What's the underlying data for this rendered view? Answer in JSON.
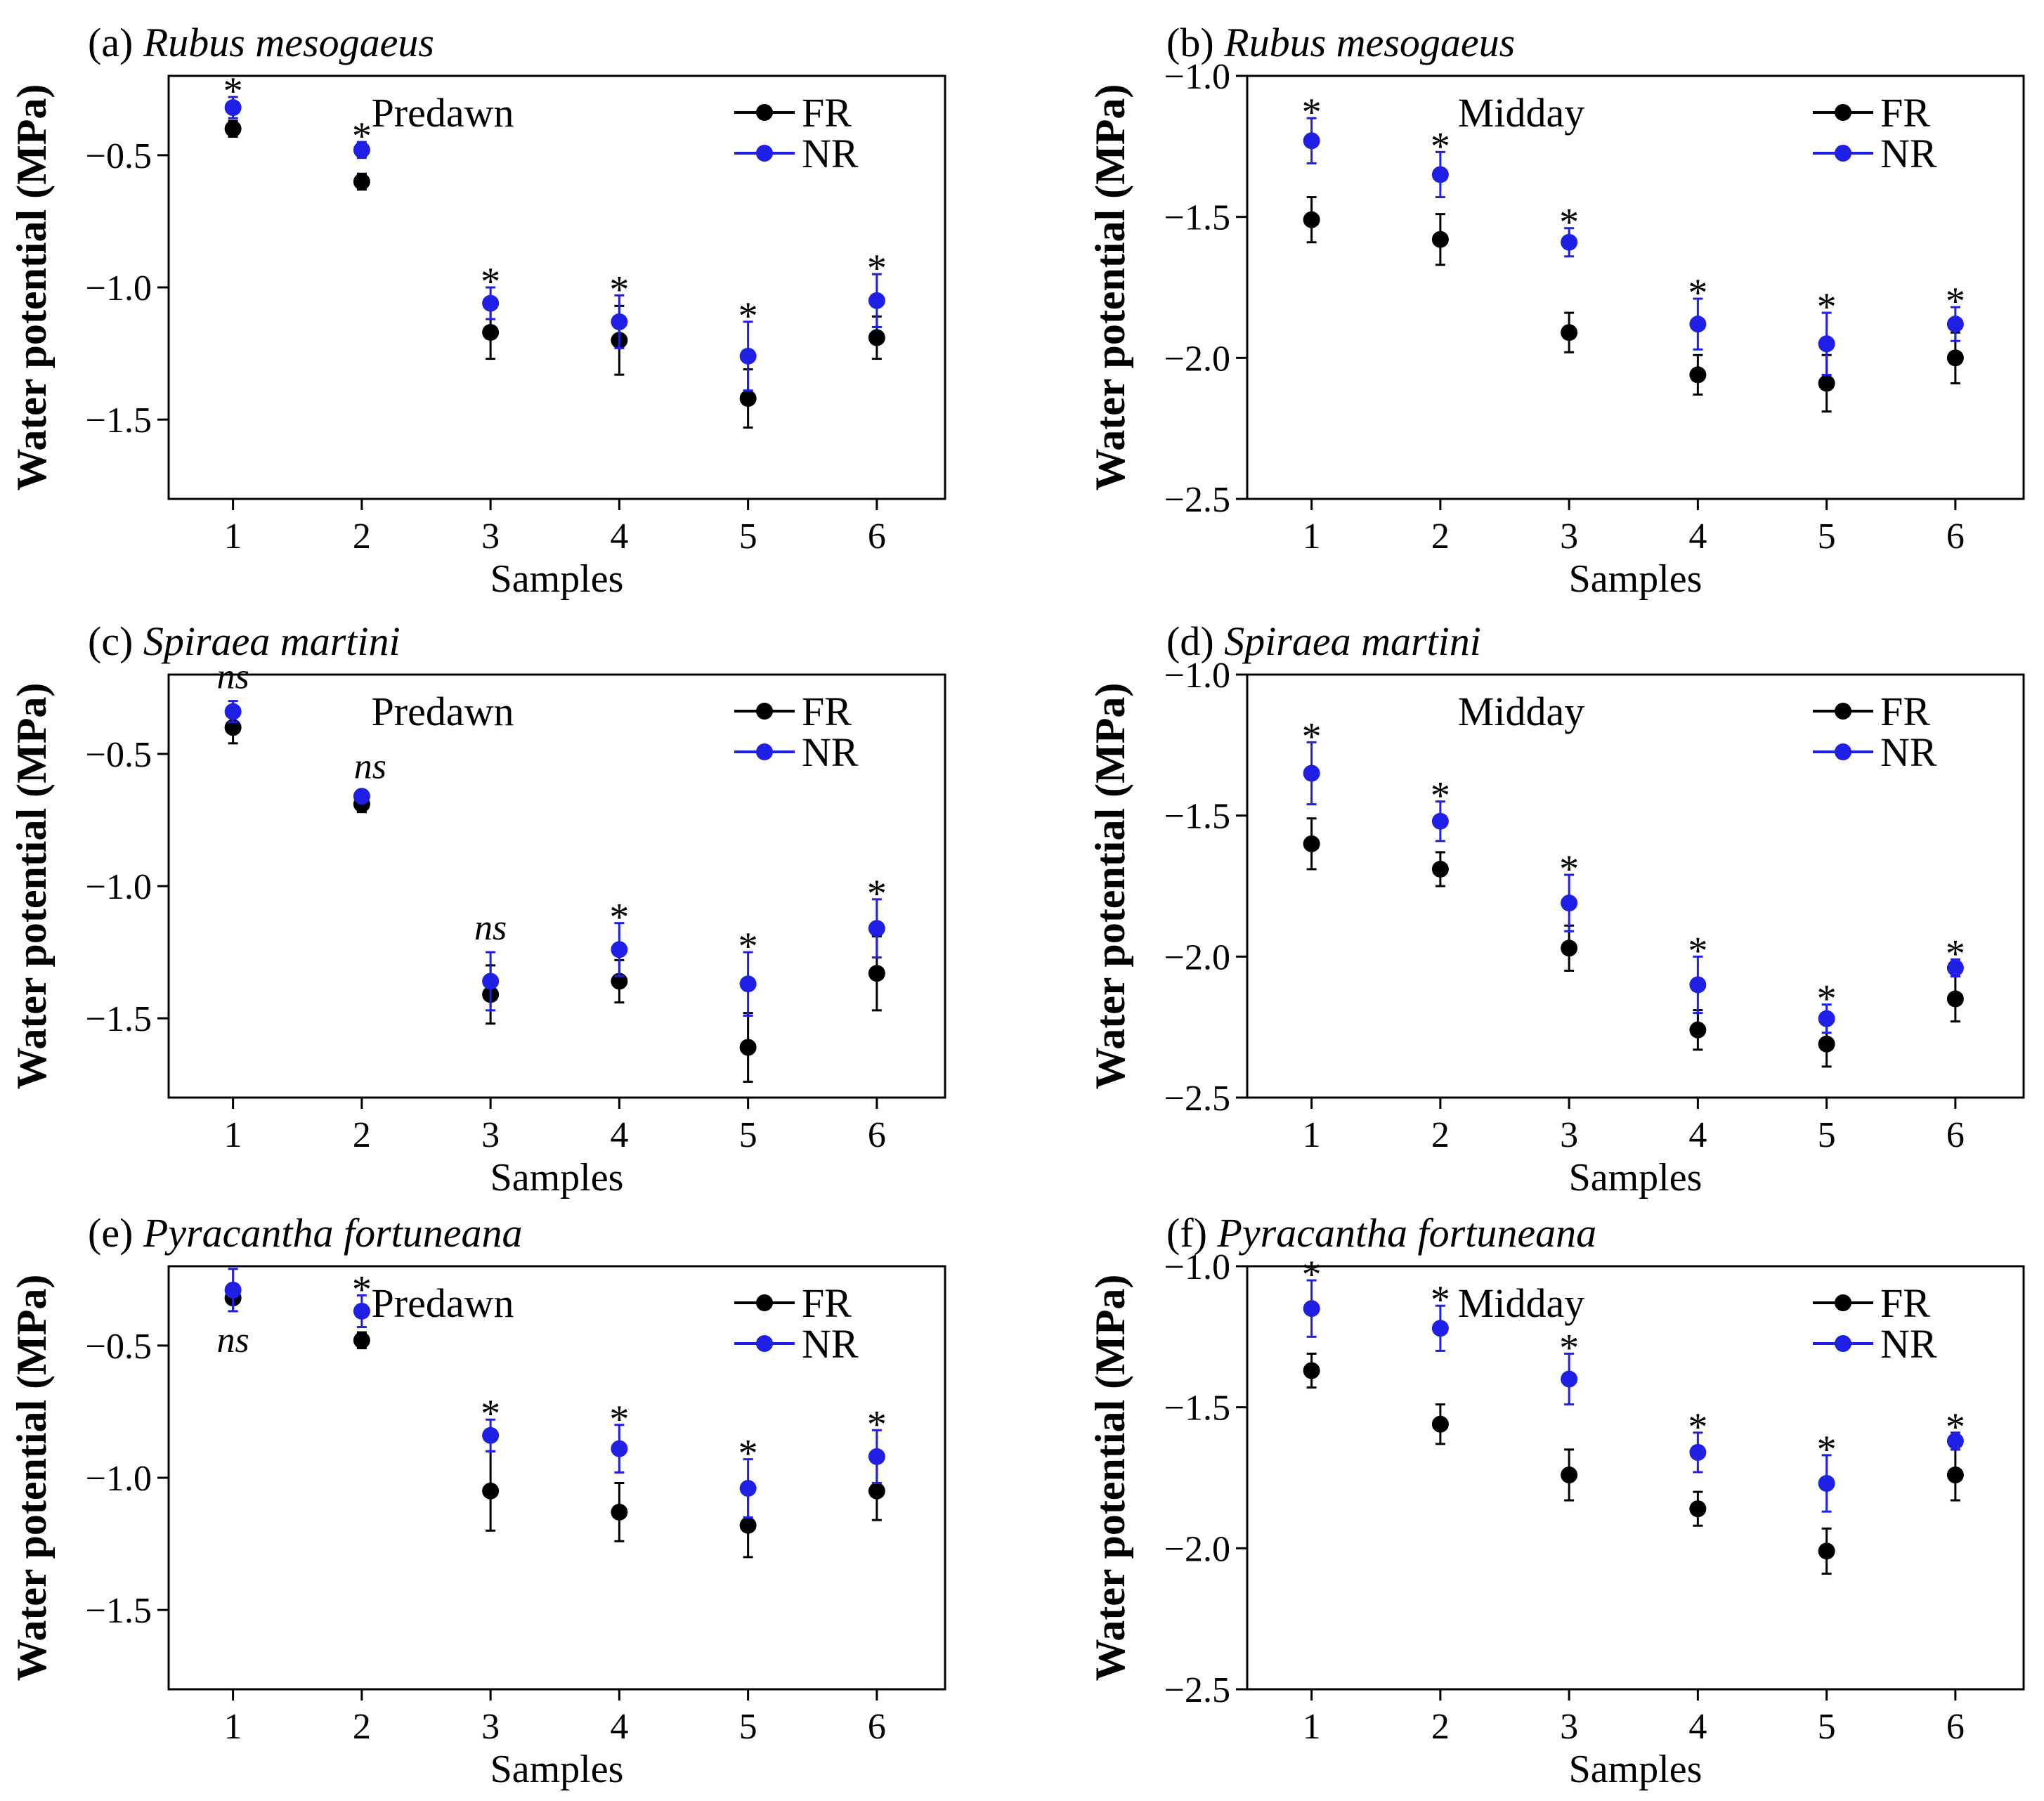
{
  "figure": {
    "background": "#ffffff"
  },
  "series_colors": {
    "FR": "#000000",
    "NR": "#1f1fe6"
  },
  "chart_data": [
    {
      "id": "a",
      "type": "scatter",
      "title_prefix": "(a) ",
      "title": "Rubus mesogaeus",
      "period": "Predawn",
      "xlabel": "Samples",
      "ylabel": "Water potential (MPa)",
      "categories": [
        "1",
        "2",
        "3",
        "4",
        "5",
        "6"
      ],
      "ylim": [
        -1.8,
        -0.2
      ],
      "yticks": [
        -0.5,
        -1.0,
        -1.5
      ],
      "ytick_labels": [
        "−0.5",
        "−1.0",
        "−1.5"
      ],
      "legend": [
        "FR",
        "NR"
      ],
      "series": [
        {
          "name": "FR",
          "color": "#000000",
          "values": [
            -0.4,
            -0.6,
            -1.17,
            -1.2,
            -1.42,
            -1.19
          ],
          "errors": [
            0.03,
            0.03,
            0.1,
            0.13,
            0.11,
            0.08
          ]
        },
        {
          "name": "NR",
          "color": "#1f1fe6",
          "values": [
            -0.32,
            -0.48,
            -1.06,
            -1.13,
            -1.26,
            -1.05
          ],
          "errors": [
            0.04,
            0.03,
            0.06,
            0.1,
            0.13,
            0.1
          ]
        }
      ],
      "significance": [
        "*",
        "*",
        "*",
        "*",
        "*",
        "*"
      ],
      "significance_position": [
        "above",
        "above",
        "above",
        "above",
        "above",
        "above"
      ]
    },
    {
      "id": "b",
      "type": "scatter",
      "title_prefix": "(b) ",
      "title": "Rubus mesogaeus",
      "period": "Midday",
      "xlabel": "Samples",
      "ylabel": "Water potential (MPa)",
      "categories": [
        "1",
        "2",
        "3",
        "4",
        "5",
        "6"
      ],
      "ylim": [
        -2.5,
        -1.0
      ],
      "yticks": [
        -1.0,
        -1.5,
        -2.0,
        -2.5
      ],
      "ytick_labels": [
        "−1.0",
        "−1.5",
        "−2.0",
        "−2.5"
      ],
      "legend": [
        "FR",
        "NR"
      ],
      "series": [
        {
          "name": "FR",
          "color": "#000000",
          "values": [
            -1.51,
            -1.58,
            -1.91,
            -2.06,
            -2.09,
            -2.0
          ],
          "errors": [
            0.08,
            0.09,
            0.07,
            0.07,
            0.1,
            0.09
          ]
        },
        {
          "name": "NR",
          "color": "#1f1fe6",
          "values": [
            -1.23,
            -1.35,
            -1.59,
            -1.88,
            -1.95,
            -1.88
          ],
          "errors": [
            0.08,
            0.08,
            0.05,
            0.09,
            0.11,
            0.06
          ]
        }
      ],
      "significance": [
        "*",
        "*",
        "*",
        "*",
        "*",
        "*"
      ],
      "significance_position": [
        "above",
        "above",
        "above",
        "above",
        "above",
        "above"
      ]
    },
    {
      "id": "c",
      "type": "scatter",
      "title_prefix": "(c) ",
      "title": "Spiraea martini",
      "period": "Predawn",
      "xlabel": "Samples",
      "ylabel": "Water potential (MPa)",
      "categories": [
        "1",
        "2",
        "3",
        "4",
        "5",
        "6"
      ],
      "ylim": [
        -1.8,
        -0.2
      ],
      "yticks": [
        -0.5,
        -1.0,
        -1.5
      ],
      "ytick_labels": [
        "−0.5",
        "−1.0",
        "−1.5"
      ],
      "legend": [
        "FR",
        "NR"
      ],
      "series": [
        {
          "name": "FR",
          "color": "#000000",
          "values": [
            -0.4,
            -0.69,
            -1.41,
            -1.36,
            -1.61,
            -1.33
          ],
          "errors": [
            0.06,
            0.03,
            0.11,
            0.08,
            0.13,
            0.14
          ]
        },
        {
          "name": "NR",
          "color": "#1f1fe6",
          "values": [
            -0.34,
            -0.66,
            -1.36,
            -1.24,
            -1.37,
            -1.16
          ],
          "errors": [
            0.04,
            0.02,
            0.11,
            0.1,
            0.12,
            0.11
          ]
        }
      ],
      "significance": [
        "ns",
        "ns",
        "ns",
        "*",
        "*",
        "*"
      ],
      "significance_position": [
        "above",
        "above",
        "above",
        "above",
        "above",
        "above"
      ]
    },
    {
      "id": "d",
      "type": "scatter",
      "title_prefix": "(d) ",
      "title": "Spiraea martini",
      "period": "Midday",
      "xlabel": "Samples",
      "ylabel": "Water potential (MPa)",
      "categories": [
        "1",
        "2",
        "3",
        "4",
        "5",
        "6"
      ],
      "ylim": [
        -2.5,
        -1.0
      ],
      "yticks": [
        -1.0,
        -1.5,
        -2.0,
        -2.5
      ],
      "ytick_labels": [
        "−1.0",
        "−1.5",
        "−2.0",
        "−2.5"
      ],
      "legend": [
        "FR",
        "NR"
      ],
      "series": [
        {
          "name": "FR",
          "color": "#000000",
          "values": [
            -1.6,
            -1.69,
            -1.97,
            -2.26,
            -2.31,
            -2.15
          ],
          "errors": [
            0.09,
            0.06,
            0.08,
            0.07,
            0.08,
            0.08
          ]
        },
        {
          "name": "NR",
          "color": "#1f1fe6",
          "values": [
            -1.35,
            -1.52,
            -1.81,
            -2.1,
            -2.22,
            -2.04
          ],
          "errors": [
            0.11,
            0.07,
            0.1,
            0.1,
            0.05,
            0.03
          ]
        }
      ],
      "significance": [
        "*",
        "*",
        "*",
        "*",
        "*",
        "*"
      ],
      "significance_position": [
        "above",
        "above",
        "above",
        "above",
        "above",
        "above"
      ]
    },
    {
      "id": "e",
      "type": "scatter",
      "title_prefix": "(e) ",
      "title": "Pyracantha fortuneana",
      "period": "Predawn",
      "xlabel": "Samples",
      "ylabel": "Water potential (MPa)",
      "categories": [
        "1",
        "2",
        "3",
        "4",
        "5",
        "6"
      ],
      "ylim": [
        -1.8,
        -0.2
      ],
      "yticks": [
        -0.5,
        -1.0,
        -1.5
      ],
      "ytick_labels": [
        "−0.5",
        "−1.0",
        "−1.5"
      ],
      "legend": [
        "FR",
        "NR"
      ],
      "series": [
        {
          "name": "FR",
          "color": "#000000",
          "values": [
            -0.32,
            -0.48,
            -1.05,
            -1.13,
            -1.18,
            -1.05
          ],
          "errors": [
            0.05,
            0.03,
            0.15,
            0.11,
            0.12,
            0.11
          ]
        },
        {
          "name": "NR",
          "color": "#1f1fe6",
          "values": [
            -0.29,
            -0.37,
            -0.84,
            -0.89,
            -1.04,
            -0.92
          ],
          "errors": [
            0.08,
            0.06,
            0.06,
            0.09,
            0.11,
            0.1
          ]
        }
      ],
      "significance": [
        "ns",
        "*",
        "*",
        "*",
        "*",
        "*"
      ],
      "significance_position": [
        "below",
        "above",
        "above",
        "above",
        "above",
        "above"
      ]
    },
    {
      "id": "f",
      "type": "scatter",
      "title_prefix": "(f) ",
      "title": "Pyracantha fortuneana",
      "period": "Midday",
      "xlabel": "Samples",
      "ylabel": "Water potential (MPa)",
      "categories": [
        "1",
        "2",
        "3",
        "4",
        "5",
        "6"
      ],
      "ylim": [
        -2.5,
        -1.0
      ],
      "yticks": [
        -1.0,
        -1.5,
        -2.0,
        -2.5
      ],
      "ytick_labels": [
        "−1.0",
        "−1.5",
        "−2.0",
        "−2.5"
      ],
      "legend": [
        "FR",
        "NR"
      ],
      "series": [
        {
          "name": "FR",
          "color": "#000000",
          "values": [
            -1.37,
            -1.56,
            -1.74,
            -1.86,
            -2.01,
            -1.74
          ],
          "errors": [
            0.06,
            0.07,
            0.09,
            0.06,
            0.08,
            0.09
          ]
        },
        {
          "name": "NR",
          "color": "#1f1fe6",
          "values": [
            -1.15,
            -1.22,
            -1.4,
            -1.66,
            -1.77,
            -1.62
          ],
          "errors": [
            0.1,
            0.08,
            0.09,
            0.07,
            0.1,
            0.03
          ]
        }
      ],
      "significance": [
        "*",
        "*",
        "*",
        "*",
        "*",
        "*"
      ],
      "significance_position": [
        "above",
        "above",
        "above",
        "above",
        "above",
        "above"
      ]
    }
  ]
}
